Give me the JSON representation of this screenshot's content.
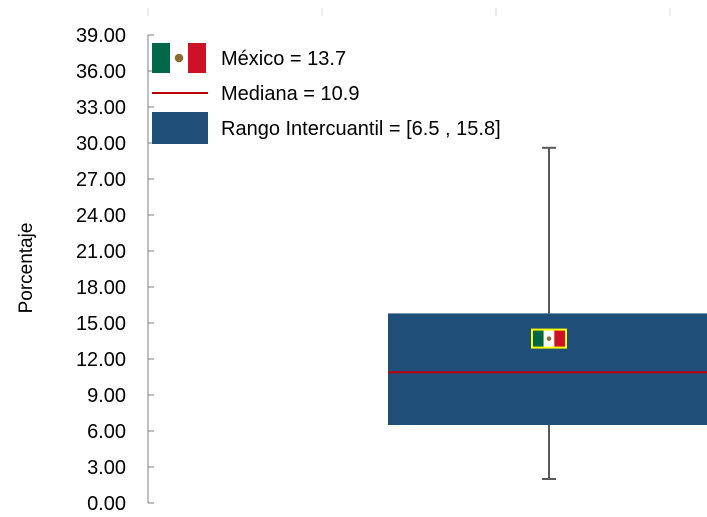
{
  "chart_data": {
    "type": "box",
    "title": "",
    "xlabel": "",
    "ylabel": "Porcentaje",
    "ylim": [
      0,
      39
    ],
    "yticks": [
      "0.00",
      "3.00",
      "6.00",
      "9.00",
      "12.00",
      "15.00",
      "18.00",
      "21.00",
      "24.00",
      "27.00",
      "30.00",
      "33.00",
      "36.00",
      "39.00"
    ],
    "box": {
      "whisker_low": 2.0,
      "q1": 6.5,
      "median": 10.9,
      "q3": 15.8,
      "whisker_high": 29.6
    },
    "marker": {
      "label": "México",
      "value": 13.7
    },
    "legend": {
      "placement": "top-left",
      "entries": [
        {
          "label": "México  = 13.7",
          "kind": "flag"
        },
        {
          "label": "Mediana = 10.9",
          "kind": "line"
        },
        {
          "label": "Rango Intercuantil = [6.5 , 15.8]",
          "kind": "box"
        }
      ]
    },
    "grid": false
  },
  "colors": {
    "box_fill": "#1f4e79",
    "median_line": "#c00000",
    "whisker": "#595959",
    "axis": "#7f7f7f",
    "text": "#000000",
    "flag_green": "#006847",
    "flag_red": "#ce1126",
    "flag_white": "#ffffff",
    "marker_border": "#ffff00"
  }
}
